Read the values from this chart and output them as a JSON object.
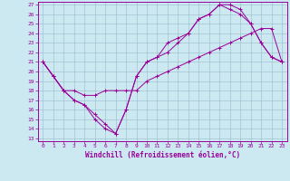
{
  "xlabel": "Windchill (Refroidissement éolien,°C)",
  "ylabel": "",
  "bg_color": "#cce8f0",
  "line_color": "#990099",
  "grid_color": "#99bbcc",
  "ylim": [
    13,
    27
  ],
  "xlim": [
    -0.5,
    23.5
  ],
  "yticks": [
    13,
    14,
    15,
    16,
    17,
    18,
    19,
    20,
    21,
    22,
    23,
    24,
    25,
    26,
    27
  ],
  "xticks": [
    0,
    1,
    2,
    3,
    4,
    5,
    6,
    7,
    8,
    9,
    10,
    11,
    12,
    13,
    14,
    15,
    16,
    17,
    18,
    19,
    20,
    21,
    22,
    23
  ],
  "line1_x": [
    0,
    1,
    2,
    3,
    4,
    5,
    6,
    7,
    8,
    9,
    10,
    11,
    12,
    13,
    14,
    15,
    16,
    17,
    18,
    19,
    20,
    21,
    22,
    23
  ],
  "line1_y": [
    21.0,
    19.5,
    18.0,
    17.0,
    16.5,
    15.0,
    14.0,
    13.5,
    16.0,
    19.5,
    21.0,
    21.5,
    23.0,
    23.5,
    24.0,
    25.5,
    26.0,
    27.0,
    27.0,
    26.5,
    25.0,
    23.0,
    21.5,
    21.0
  ],
  "line2_x": [
    0,
    1,
    2,
    3,
    4,
    5,
    6,
    7,
    8,
    9,
    10,
    11,
    12,
    13,
    14,
    15,
    16,
    17,
    18,
    19,
    20,
    21,
    22,
    23
  ],
  "line2_y": [
    21.0,
    19.5,
    18.0,
    17.0,
    16.5,
    15.5,
    14.5,
    13.5,
    16.0,
    19.5,
    21.0,
    21.5,
    22.0,
    23.0,
    24.0,
    25.5,
    26.0,
    27.0,
    26.5,
    26.0,
    25.0,
    23.0,
    21.5,
    21.0
  ],
  "line3_x": [
    0,
    1,
    2,
    3,
    4,
    5,
    6,
    7,
    8,
    9,
    10,
    11,
    12,
    13,
    14,
    15,
    16,
    17,
    18,
    19,
    20,
    21,
    22,
    23
  ],
  "line3_y": [
    21.0,
    19.5,
    18.0,
    18.0,
    17.5,
    17.5,
    18.0,
    18.0,
    18.0,
    18.0,
    19.0,
    19.5,
    20.0,
    20.5,
    21.0,
    21.5,
    22.0,
    22.5,
    23.0,
    23.5,
    24.0,
    24.5,
    24.5,
    21.0
  ]
}
